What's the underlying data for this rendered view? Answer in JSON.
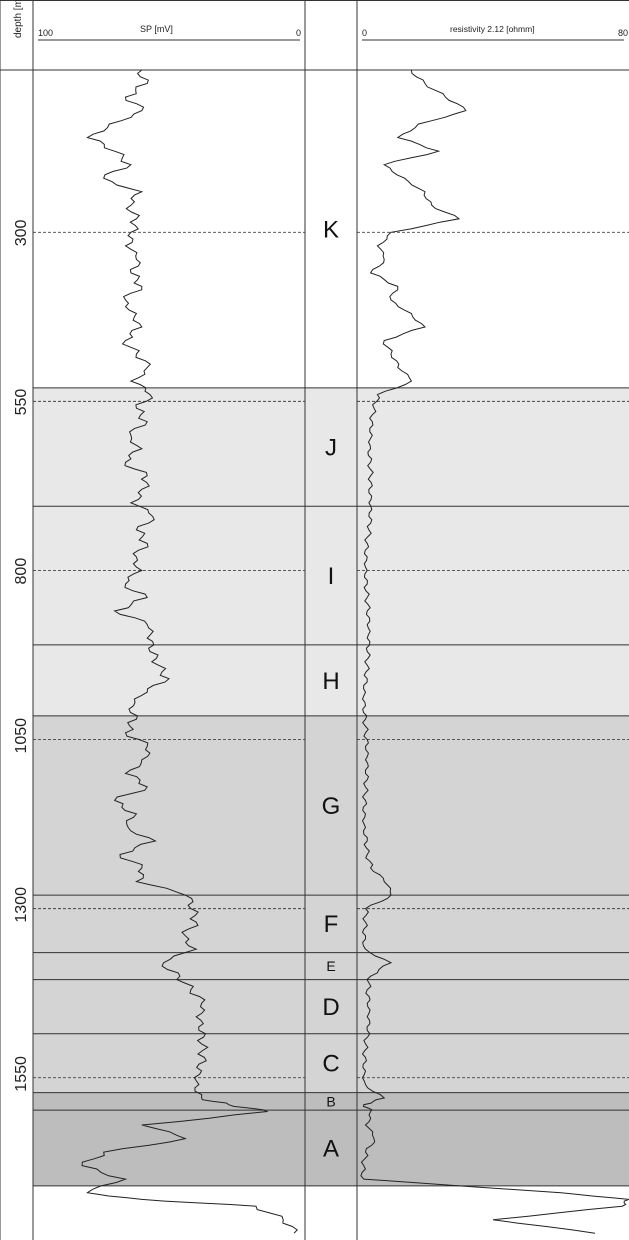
{
  "chart_data": {
    "type": "line",
    "depth_axis": {
      "label": "depth [m]",
      "ticks": [
        300,
        550,
        800,
        1050,
        1300,
        1550
      ],
      "range": [
        60,
        1790
      ]
    },
    "tracks": [
      {
        "label": "SP [mV]",
        "range_left": "100",
        "range_right": "0",
        "xlim": [
          100,
          0
        ],
        "series": {
          "depth": [
            60,
            80,
            100,
            120,
            140,
            160,
            180,
            200,
            220,
            240,
            260,
            280,
            300,
            320,
            340,
            360,
            380,
            400,
            420,
            440,
            460,
            480,
            500,
            520,
            540,
            560,
            580,
            600,
            620,
            640,
            660,
            680,
            700,
            720,
            740,
            760,
            780,
            800,
            820,
            840,
            860,
            880,
            900,
            920,
            940,
            960,
            980,
            1000,
            1020,
            1040,
            1060,
            1080,
            1100,
            1120,
            1140,
            1160,
            1180,
            1200,
            1220,
            1240,
            1260,
            1280,
            1300,
            1320,
            1340,
            1360,
            1380,
            1400,
            1420,
            1440,
            1460,
            1480,
            1500,
            1520,
            1540,
            1560,
            1580,
            1590,
            1600,
            1620,
            1640,
            1660,
            1680,
            1700,
            1720,
            1730,
            1740,
            1760,
            1780
          ],
          "values": [
            60,
            58,
            66,
            60,
            72,
            80,
            70,
            64,
            74,
            60,
            64,
            62,
            64,
            66,
            62,
            64,
            60,
            66,
            62,
            60,
            66,
            62,
            58,
            64,
            57,
            62,
            58,
            64,
            60,
            66,
            58,
            60,
            64,
            56,
            62,
            58,
            62,
            60,
            66,
            58,
            70,
            58,
            58,
            57,
            54,
            50,
            58,
            63,
            62,
            66,
            58,
            60,
            66,
            58,
            70,
            62,
            65,
            55,
            68,
            60,
            62,
            44,
            42,
            40,
            44,
            40,
            52,
            46,
            42,
            38,
            40,
            39,
            38,
            37,
            38,
            39,
            38,
            28,
            14,
            60,
            44,
            74,
            82,
            66,
            80,
            60,
            18,
            8,
            4
          ]
        }
      },
      {
        "label": "resistivity 2.12 [ohmm]",
        "range_left": "0",
        "range_right": "80",
        "xlim": [
          0,
          80
        ],
        "series": {
          "depth": [
            60,
            80,
            100,
            120,
            140,
            160,
            180,
            200,
            220,
            240,
            260,
            280,
            300,
            320,
            340,
            360,
            380,
            400,
            420,
            440,
            460,
            480,
            500,
            520,
            540,
            560,
            580,
            600,
            620,
            640,
            660,
            680,
            700,
            720,
            740,
            760,
            780,
            800,
            820,
            840,
            860,
            880,
            900,
            920,
            940,
            960,
            980,
            1000,
            1020,
            1040,
            1060,
            1080,
            1100,
            1120,
            1140,
            1160,
            1180,
            1200,
            1220,
            1240,
            1260,
            1280,
            1300,
            1320,
            1340,
            1360,
            1380,
            1400,
            1420,
            1440,
            1460,
            1480,
            1500,
            1520,
            1540,
            1560,
            1580,
            1590,
            1600,
            1620,
            1640,
            1660,
            1680,
            1700,
            1720,
            1730,
            1740,
            1760,
            1780
          ],
          "values": [
            16,
            20,
            26,
            32,
            18,
            12,
            24,
            8,
            14,
            20,
            22,
            30,
            10,
            6,
            8,
            4,
            12,
            10,
            16,
            20,
            8,
            10,
            12,
            16,
            6,
            5,
            4.5,
            4.5,
            4,
            4,
            4,
            3.5,
            3.5,
            3.5,
            3.5,
            3,
            3,
            3,
            3,
            3,
            3,
            3,
            3,
            3,
            3,
            3,
            2.5,
            2.5,
            2.5,
            2.5,
            2.5,
            2.5,
            2.5,
            2.5,
            2.5,
            2.5,
            2.5,
            3,
            3,
            4,
            8,
            10,
            2.5,
            2.5,
            2.5,
            2.5,
            10,
            4,
            3,
            3,
            3,
            3,
            2.5,
            2.5,
            2.5,
            2.5,
            8,
            2,
            4,
            2.5,
            5,
            2.5,
            2,
            2,
            60,
            80,
            78,
            40,
            70
          ]
        }
      }
    ],
    "zones": [
      {
        "label": "K",
        "top": 60,
        "bottom": 530,
        "shade": "none"
      },
      {
        "label": "J",
        "top": 530,
        "bottom": 705,
        "shade": "light"
      },
      {
        "label": "I",
        "top": 705,
        "bottom": 910,
        "shade": "light"
      },
      {
        "label": "H",
        "top": 910,
        "bottom": 1015,
        "shade": "light"
      },
      {
        "label": "G",
        "top": 1015,
        "bottom": 1280,
        "shade": "medium"
      },
      {
        "label": "F",
        "top": 1280,
        "bottom": 1365,
        "shade": "medium"
      },
      {
        "label": "E",
        "top": 1365,
        "bottom": 1405,
        "shade": "medium"
      },
      {
        "label": "D",
        "top": 1405,
        "bottom": 1485,
        "shade": "medium"
      },
      {
        "label": "C",
        "top": 1485,
        "bottom": 1572,
        "shade": "medium"
      },
      {
        "label": "B",
        "top": 1572,
        "bottom": 1598,
        "shade": "dark"
      },
      {
        "label": "A",
        "top": 1598,
        "bottom": 1710,
        "shade": "dark"
      }
    ],
    "shade_colors": {
      "none": "#ffffff",
      "light": "#e8e8e8",
      "medium": "#d4d4d4",
      "dark": "#bdbdbd"
    },
    "line_color": "#222222",
    "grid": "dashed horizontal lines at labeled depths"
  }
}
